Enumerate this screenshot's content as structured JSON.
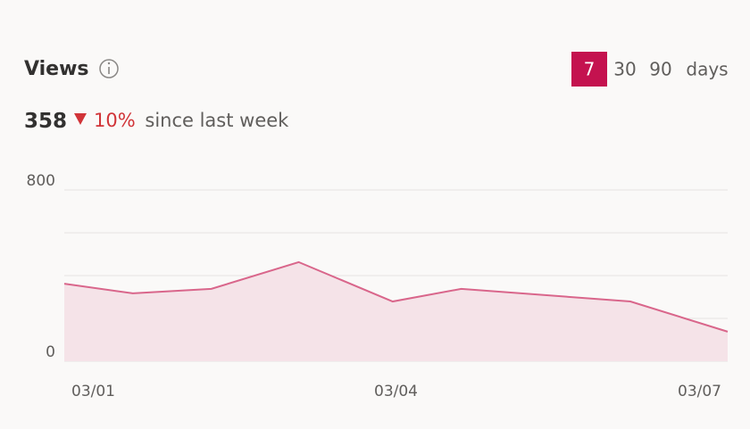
{
  "header": {
    "title": "Views",
    "range_options": [
      "7",
      "30",
      "90"
    ],
    "selected_range": 0,
    "range_unit": "days"
  },
  "summary": {
    "value": 358,
    "change": "10%",
    "change_text": "since last week"
  },
  "chart_data": {
    "type": "area",
    "color": "#d9668b",
    "fill": "#f5e3e8",
    "x": [
      1,
      1.62,
      2.33,
      3.12,
      3.97,
      4.59,
      6.12,
      7
    ],
    "values": [
      362,
      317,
      338,
      463,
      279,
      338,
      279,
      138
    ],
    "xlim": [
      1,
      7
    ],
    "xticks": [
      {
        "value": 1,
        "label": "03/01"
      },
      {
        "value": 4,
        "label": "03/04"
      },
      {
        "value": 7,
        "label": "03/07"
      }
    ],
    "ylim": [
      0,
      800
    ],
    "yticks": [
      0,
      800
    ],
    "grid": [
      0,
      200,
      400,
      600,
      800
    ]
  }
}
